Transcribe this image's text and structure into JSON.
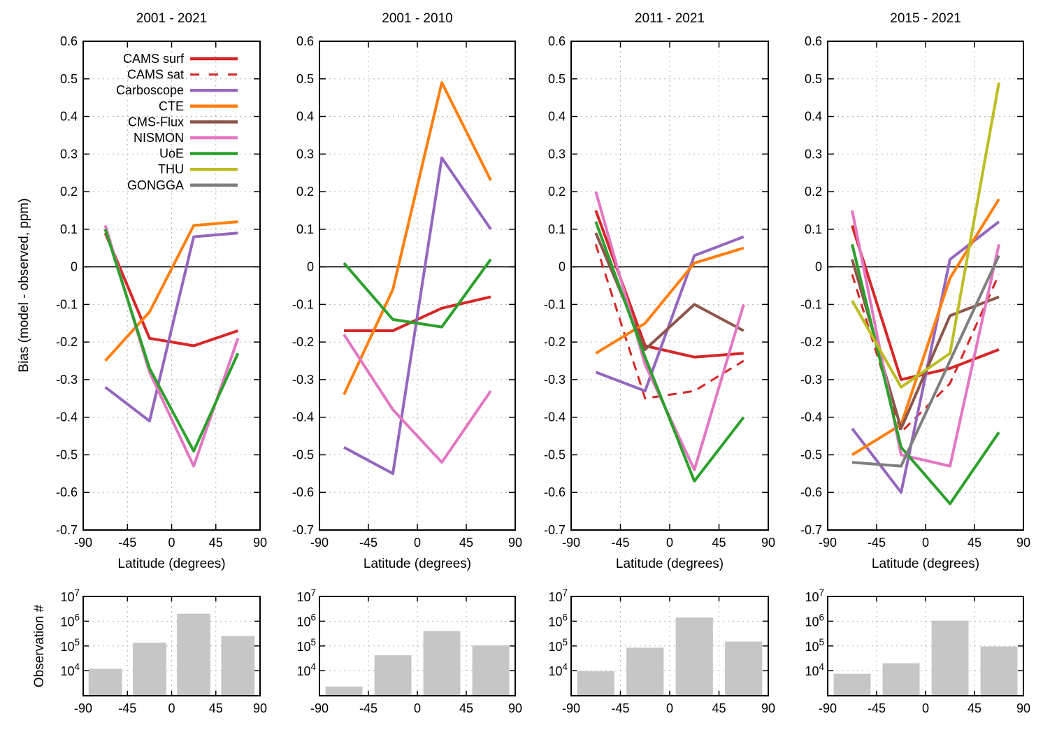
{
  "figure_labels": {
    "bias_axis_label": "Bias (model - observed, ppm)",
    "obs_axis_label": "Observation #",
    "latitude_axis_label": "Latitude (degrees)"
  },
  "axis_ticks": {
    "latitude": [
      "-90",
      "-45",
      "0",
      "45",
      "90"
    ],
    "bias": [
      "0.6",
      "0.5",
      "0.4",
      "0.3",
      "0.2",
      "0.1",
      "0",
      "-0.1",
      "-0.2",
      "-0.3",
      "-0.4",
      "-0.5",
      "-0.6",
      "-0.7"
    ],
    "obs_base": "10",
    "obs_exponents": [
      "7",
      "6",
      "5",
      "4"
    ]
  },
  "legend": [
    {
      "label": "CAMS surf",
      "color": "#d62728",
      "dash": "solid"
    },
    {
      "label": "CAMS sat",
      "color": "#d62728",
      "dash": "dashed"
    },
    {
      "label": "Carboscope",
      "color": "#9467bd",
      "dash": "solid"
    },
    {
      "label": "CTE",
      "color": "#ff7f0e",
      "dash": "solid"
    },
    {
      "label": "CMS-Flux",
      "color": "#8c564b",
      "dash": "solid"
    },
    {
      "label": "NISMON",
      "color": "#e377c2",
      "dash": "solid"
    },
    {
      "label": "UoE",
      "color": "#2ca02c",
      "dash": "solid"
    },
    {
      "label": "THU",
      "color": "#bcbd22",
      "dash": "solid"
    },
    {
      "label": "GONGGA",
      "color": "#7f7f7f",
      "dash": "solid"
    }
  ],
  "style": {
    "bar_color": "#c6c6c6",
    "grid_color": "#b3b3b3",
    "axis_color": "#000000",
    "background": "#ffffff"
  },
  "chart_data": [
    {
      "type": "line+bar",
      "title": "2001 - 2021",
      "x": [
        -67.5,
        -22.5,
        22.5,
        67.5
      ],
      "xlim": [
        -90,
        90
      ],
      "ylim_bias": [
        -0.7,
        0.6
      ],
      "obs_ylim_log10": [
        3,
        7
      ],
      "bias_series": [
        {
          "name": "CAMS surf",
          "values": [
            0.09,
            -0.19,
            -0.21,
            -0.17
          ]
        },
        {
          "name": "Carboscope",
          "values": [
            -0.32,
            -0.41,
            0.08,
            0.09
          ]
        },
        {
          "name": "CTE",
          "values": [
            -0.25,
            -0.12,
            0.11,
            0.12
          ]
        },
        {
          "name": "NISMON",
          "values": [
            0.11,
            -0.28,
            -0.53,
            -0.19
          ]
        },
        {
          "name": "UoE",
          "values": [
            0.1,
            -0.27,
            -0.49,
            -0.23
          ]
        }
      ],
      "observation_counts": [
        12000,
        135000,
        2000000,
        250000
      ]
    },
    {
      "type": "line+bar",
      "title": "2001 - 2010",
      "x": [
        -67.5,
        -22.5,
        22.5,
        67.5
      ],
      "xlim": [
        -90,
        90
      ],
      "ylim_bias": [
        -0.7,
        0.6
      ],
      "obs_ylim_log10": [
        3,
        7
      ],
      "bias_series": [
        {
          "name": "CAMS surf",
          "values": [
            -0.17,
            -0.17,
            -0.11,
            -0.08
          ]
        },
        {
          "name": "Carboscope",
          "values": [
            -0.48,
            -0.55,
            0.29,
            0.1
          ]
        },
        {
          "name": "CTE",
          "values": [
            -0.34,
            -0.06,
            0.49,
            0.23
          ]
        },
        {
          "name": "NISMON",
          "values": [
            -0.18,
            -0.38,
            -0.52,
            -0.33
          ]
        },
        {
          "name": "UoE",
          "values": [
            0.01,
            -0.14,
            -0.16,
            0.02
          ]
        }
      ],
      "observation_counts": [
        2300,
        42000,
        400000,
        105000
      ]
    },
    {
      "type": "line+bar",
      "title": "2011 - 2021",
      "x": [
        -67.5,
        -22.5,
        22.5,
        67.5
      ],
      "xlim": [
        -90,
        90
      ],
      "ylim_bias": [
        -0.7,
        0.6
      ],
      "obs_ylim_log10": [
        3,
        7
      ],
      "bias_series": [
        {
          "name": "CAMS surf",
          "values": [
            0.15,
            -0.21,
            -0.24,
            -0.23
          ]
        },
        {
          "name": "CAMS sat",
          "values": [
            0.06,
            -0.35,
            -0.33,
            -0.25
          ]
        },
        {
          "name": "Carboscope",
          "values": [
            -0.28,
            -0.33,
            0.03,
            0.08
          ]
        },
        {
          "name": "CTE",
          "values": [
            -0.23,
            -0.15,
            0.01,
            0.05
          ]
        },
        {
          "name": "CMS-Flux",
          "values": [
            0.09,
            -0.22,
            -0.1,
            -0.17
          ]
        },
        {
          "name": "NISMON",
          "values": [
            0.2,
            -0.26,
            -0.54,
            -0.1
          ]
        },
        {
          "name": "UoE",
          "values": [
            0.12,
            -0.24,
            -0.57,
            -0.4
          ]
        }
      ],
      "observation_counts": [
        9500,
        85000,
        1400000,
        150000
      ]
    },
    {
      "type": "line+bar",
      "title": "2015 - 2021",
      "x": [
        -67.5,
        -22.5,
        22.5,
        67.5
      ],
      "xlim": [
        -90,
        90
      ],
      "ylim_bias": [
        -0.7,
        0.6
      ],
      "obs_ylim_log10": [
        3,
        7
      ],
      "bias_series": [
        {
          "name": "CAMS surf",
          "values": [
            0.11,
            -0.3,
            -0.27,
            -0.22
          ]
        },
        {
          "name": "CAMS sat",
          "values": [
            -0.02,
            -0.44,
            -0.31,
            -0.02
          ]
        },
        {
          "name": "Carboscope",
          "values": [
            -0.43,
            -0.6,
            0.02,
            0.12
          ]
        },
        {
          "name": "CTE",
          "values": [
            -0.5,
            -0.42,
            -0.03,
            0.18
          ]
        },
        {
          "name": "CMS-Flux",
          "values": [
            0.02,
            -0.43,
            -0.13,
            -0.08
          ]
        },
        {
          "name": "NISMON",
          "values": [
            0.15,
            -0.5,
            -0.53,
            0.06
          ]
        },
        {
          "name": "UoE",
          "values": [
            0.06,
            -0.48,
            -0.63,
            -0.44
          ]
        },
        {
          "name": "THU",
          "values": [
            -0.09,
            -0.32,
            -0.23,
            0.49
          ]
        },
        {
          "name": "GONGGA",
          "values": [
            -0.52,
            -0.53,
            -0.25,
            0.03
          ]
        }
      ],
      "observation_counts": [
        7500,
        20000,
        1050000,
        95000
      ]
    }
  ]
}
